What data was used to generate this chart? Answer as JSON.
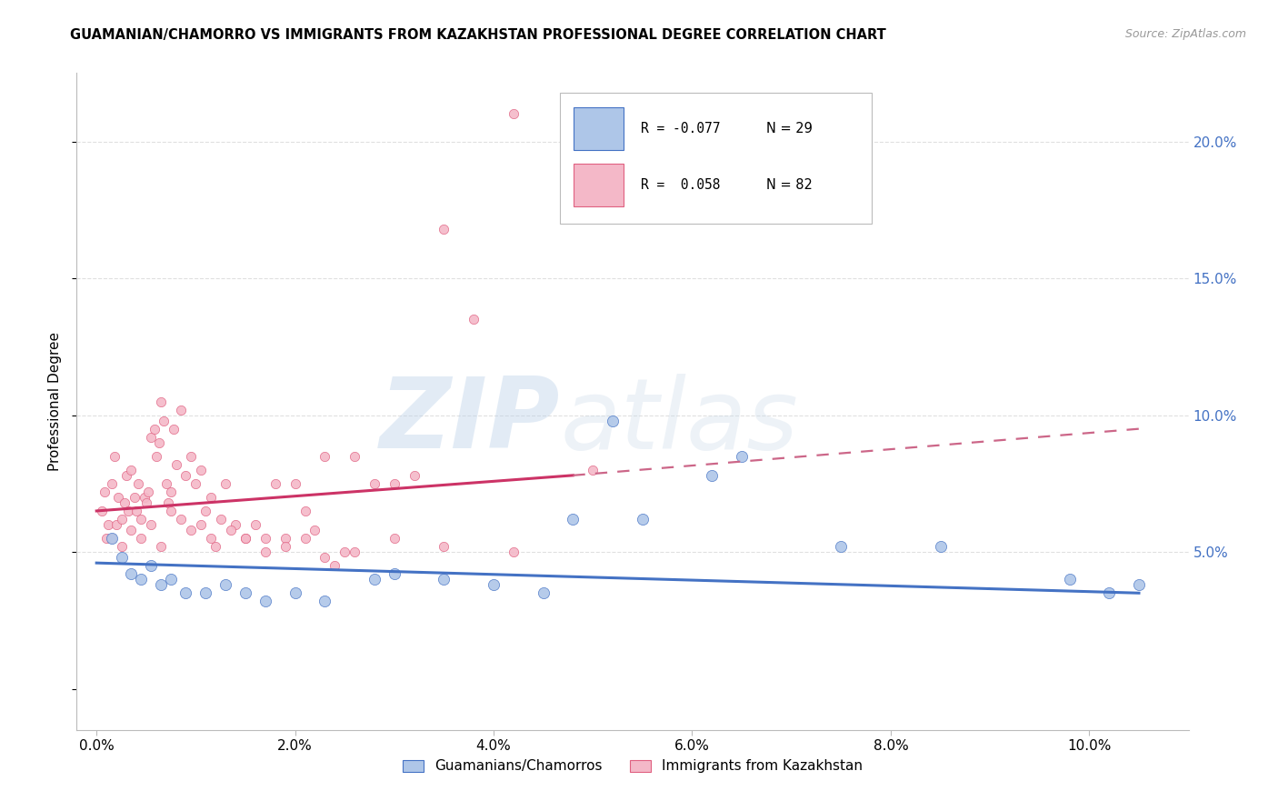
{
  "title": "GUAMANIAN/CHAMORRO VS IMMIGRANTS FROM KAZAKHSTAN PROFESSIONAL DEGREE CORRELATION CHART",
  "source": "Source: ZipAtlas.com",
  "ylabel_left": "Professional Degree",
  "x_tick_values": [
    0.0,
    2.0,
    4.0,
    6.0,
    8.0,
    10.0
  ],
  "y_tick_values": [
    5.0,
    10.0,
    15.0,
    20.0
  ],
  "xlim": [
    -0.2,
    11.0
  ],
  "ylim": [
    -1.5,
    22.5
  ],
  "legend_labels_bottom": [
    "Guamanians/Chamorros",
    "Immigrants from Kazakhstan"
  ],
  "blue_scatter_x": [
    0.15,
    0.25,
    0.35,
    0.45,
    0.55,
    0.65,
    0.75,
    0.9,
    1.1,
    1.3,
    1.5,
    1.7,
    2.0,
    2.3,
    2.8,
    3.0,
    3.5,
    4.0,
    4.5,
    4.8,
    5.2,
    5.5,
    6.2,
    6.5,
    7.5,
    8.5,
    9.8,
    10.2,
    10.5
  ],
  "blue_scatter_y": [
    5.5,
    4.8,
    4.2,
    4.0,
    4.5,
    3.8,
    4.0,
    3.5,
    3.5,
    3.8,
    3.5,
    3.2,
    3.5,
    3.2,
    4.0,
    4.2,
    4.0,
    3.8,
    3.5,
    6.2,
    9.8,
    6.2,
    7.8,
    8.5,
    5.2,
    5.2,
    4.0,
    3.5,
    3.8
  ],
  "pink_scatter_x": [
    0.05,
    0.08,
    0.1,
    0.12,
    0.15,
    0.18,
    0.2,
    0.22,
    0.25,
    0.28,
    0.3,
    0.32,
    0.35,
    0.38,
    0.4,
    0.42,
    0.45,
    0.48,
    0.5,
    0.52,
    0.55,
    0.58,
    0.6,
    0.63,
    0.65,
    0.68,
    0.7,
    0.72,
    0.75,
    0.78,
    0.8,
    0.85,
    0.9,
    0.95,
    1.0,
    1.05,
    1.1,
    1.15,
    1.2,
    1.3,
    1.4,
    1.5,
    1.6,
    1.7,
    1.8,
    1.9,
    2.0,
    2.1,
    2.2,
    2.3,
    2.4,
    2.5,
    2.6,
    2.8,
    3.0,
    3.2,
    3.5,
    3.8,
    4.2,
    5.0,
    0.15,
    0.25,
    0.35,
    0.45,
    0.55,
    0.65,
    0.75,
    0.85,
    0.95,
    1.05,
    1.15,
    1.25,
    1.35,
    1.5,
    1.7,
    1.9,
    2.1,
    2.3,
    2.6,
    3.0,
    3.5,
    4.2
  ],
  "pink_scatter_y": [
    6.5,
    7.2,
    5.5,
    6.0,
    7.5,
    8.5,
    6.0,
    7.0,
    6.2,
    6.8,
    7.8,
    6.5,
    8.0,
    7.0,
    6.5,
    7.5,
    6.2,
    7.0,
    6.8,
    7.2,
    9.2,
    9.5,
    8.5,
    9.0,
    10.5,
    9.8,
    7.5,
    6.8,
    7.2,
    9.5,
    8.2,
    10.2,
    7.8,
    8.5,
    7.5,
    8.0,
    6.5,
    7.0,
    5.2,
    7.5,
    6.0,
    5.5,
    6.0,
    5.5,
    7.5,
    5.5,
    7.5,
    6.5,
    5.8,
    8.5,
    4.5,
    5.0,
    8.5,
    7.5,
    7.5,
    7.8,
    16.8,
    13.5,
    21.0,
    8.0,
    5.5,
    5.2,
    5.8,
    5.5,
    6.0,
    5.2,
    6.5,
    6.2,
    5.8,
    6.0,
    5.5,
    6.2,
    5.8,
    5.5,
    5.0,
    5.2,
    5.5,
    4.8,
    5.0,
    5.5,
    5.2,
    5.0
  ],
  "watermark_zip": "ZIP",
  "watermark_atlas": "atlas",
  "background_color": "#ffffff",
  "grid_color": "#e0e0e0",
  "blue_line_color": "#4472c4",
  "pink_line_color": "#cc3366",
  "pink_dashed_color": "#cc6688",
  "scatter_blue_facecolor": "#aec6e8",
  "scatter_blue_edgecolor": "#4472c4",
  "scatter_pink_facecolor": "#f4b8c8",
  "scatter_pink_edgecolor": "#e06080",
  "scatter_size": 55,
  "blue_reg_x0": 0.0,
  "blue_reg_y0": 4.6,
  "blue_reg_x1": 10.5,
  "blue_reg_y1": 3.5,
  "pink_solid_x0": 0.0,
  "pink_solid_y0": 6.5,
  "pink_solid_x1": 4.8,
  "pink_solid_y1": 7.8,
  "pink_dash_x0": 4.8,
  "pink_dash_y0": 7.8,
  "pink_dash_x1": 10.5,
  "pink_dash_y1": 9.5,
  "legend_R1": "R = -0.077",
  "legend_N1": "N = 29",
  "legend_R2": "R =  0.058",
  "legend_N2": "N = 82"
}
